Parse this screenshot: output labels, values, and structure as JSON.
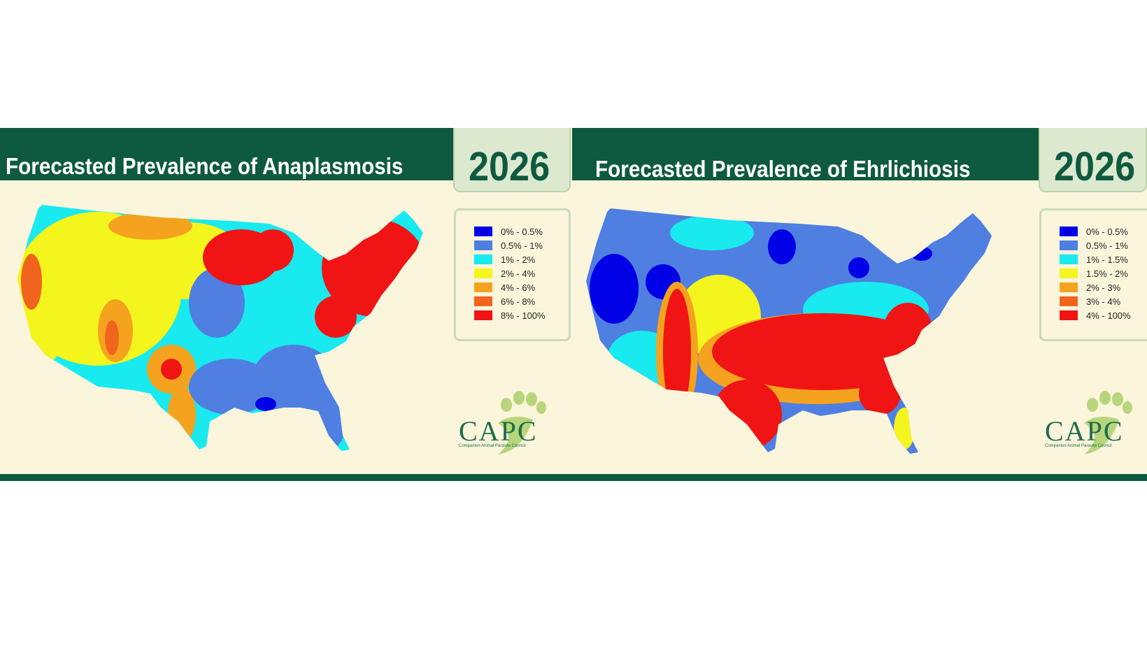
{
  "maps": [
    {
      "title": "Forecasted Prevalence of Anaplasmosis",
      "year": "2026",
      "legend": [
        {
          "label": "0% - 0.5%",
          "color": "#0000e6"
        },
        {
          "label": "0.5% - 1%",
          "color": "#4f7fe0"
        },
        {
          "label": "1% - 2%",
          "color": "#18eaf0"
        },
        {
          "label": "2% - 4%",
          "color": "#f5f51e"
        },
        {
          "label": "4% - 6%",
          "color": "#f5a31e"
        },
        {
          "label": "6% - 8%",
          "color": "#f0641e"
        },
        {
          "label": "8% - 100%",
          "color": "#f01414"
        }
      ],
      "logo": {
        "name": "CAPC",
        "subtitle": "Companion Animal Parasite Council"
      }
    },
    {
      "title": "Forecasted Prevalence of Ehrlichiosis",
      "year": "2026",
      "legend": [
        {
          "label": "0% - 0.5%",
          "color": "#0000e6"
        },
        {
          "label": "0.5% - 1%",
          "color": "#4f7fe0"
        },
        {
          "label": "1% - 1.5%",
          "color": "#18eaf0"
        },
        {
          "label": "1.5% - 2%",
          "color": "#f5f51e"
        },
        {
          "label": "2% - 3%",
          "color": "#f5a31e"
        },
        {
          "label": "3% - 4%",
          "color": "#f0641e"
        },
        {
          "label": "4% - 100%",
          "color": "#f01414"
        }
      ],
      "logo": {
        "name": "CAPC",
        "subtitle": "Companion Animal Parasite Council"
      }
    }
  ],
  "colors": {
    "header_green": "#0e5a41",
    "background": "#fbf5dc"
  }
}
